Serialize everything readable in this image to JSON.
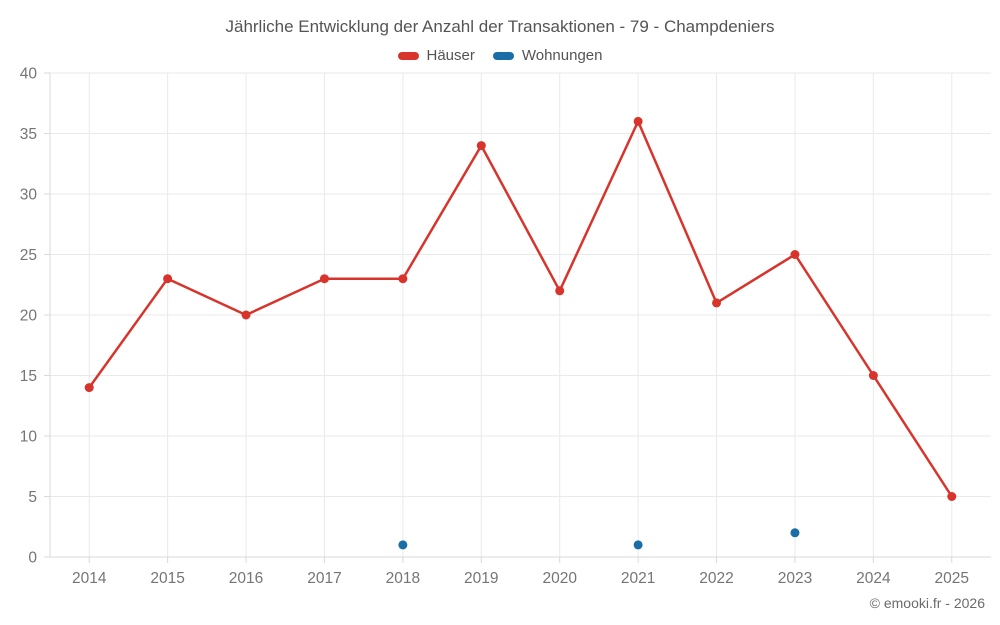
{
  "chart_data": {
    "type": "line",
    "title": "Jährliche Entwicklung der Anzahl der Transaktionen - 79 - Champdeniers",
    "categories": [
      "2014",
      "2015",
      "2016",
      "2017",
      "2018",
      "2019",
      "2020",
      "2021",
      "2022",
      "2023",
      "2024",
      "2025"
    ],
    "series": [
      {
        "name": "Häuser",
        "color": "#d8342c",
        "values": [
          14,
          23,
          20,
          23,
          23,
          34,
          22,
          36,
          21,
          25,
          15,
          5
        ]
      },
      {
        "name": "Wohnungen",
        "color": "#1b6ea5",
        "values": [
          null,
          null,
          null,
          null,
          1,
          null,
          null,
          1,
          null,
          2,
          null,
          null
        ]
      }
    ],
    "ylim": [
      0,
      40
    ],
    "ytick_step": 5,
    "grid": true,
    "legend_position": "top",
    "colors": {
      "grid_line": "#eaeaea",
      "axis_border": "#d9d9d9",
      "tick_mark": "#d9d9d9",
      "tick_label": "#757575",
      "title_text": "#545454"
    }
  },
  "footer": {
    "copyright": "© emooki.fr - 2026"
  }
}
